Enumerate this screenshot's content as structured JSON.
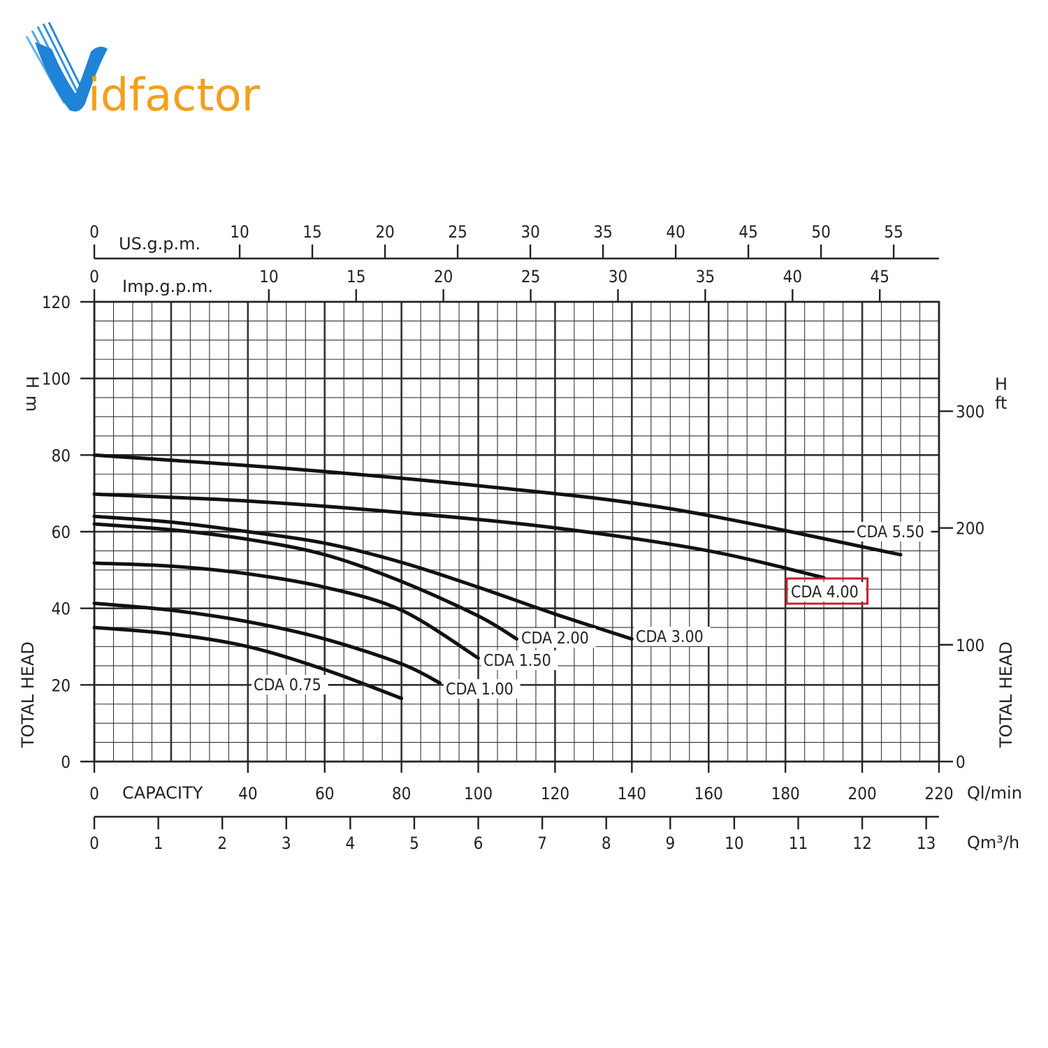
{
  "brand": {
    "logo_text_v": "V",
    "logo_text_rest": "idfactor",
    "colors": {
      "blue": "#2a8fe0",
      "orange": "#f2a01c"
    }
  },
  "chart_data": {
    "type": "line",
    "x_axis": {
      "label": "CAPACITY",
      "unit": "Ql/min",
      "range": [
        0,
        220
      ],
      "ticks": [
        0,
        40,
        60,
        80,
        100,
        120,
        140,
        160,
        180,
        200,
        220
      ],
      "minor_step": 5
    },
    "y_axis": {
      "label": "TOTAL HEAD",
      "unit": "H m",
      "unit_h": "H",
      "unit_m": "m",
      "range": [
        0,
        120
      ],
      "ticks": [
        0,
        20,
        40,
        60,
        80,
        100,
        120
      ],
      "minor_step": 5
    },
    "secondary_axes": {
      "us_gpm": {
        "label": "US.g.p.m.",
        "ticks": [
          0,
          10,
          15,
          20,
          25,
          30,
          35,
          40,
          45,
          50,
          55
        ]
      },
      "imp_gpm": {
        "label": "Imp.g.p.m.",
        "ticks": [
          0,
          10,
          15,
          20,
          25,
          30,
          35,
          40,
          45
        ]
      },
      "m3h": {
        "unit": "Qm³/h",
        "ticks": [
          0,
          1,
          2,
          3,
          4,
          5,
          6,
          7,
          8,
          9,
          10,
          11,
          12,
          13
        ]
      },
      "ft": {
        "label": "TOTAL HEAD",
        "unit_h": "H",
        "unit_ft": "ft",
        "ticks": [
          0,
          100,
          200,
          300
        ]
      }
    },
    "grid": true,
    "series": [
      {
        "name": "CDA 0.75",
        "points": [
          [
            0,
            35
          ],
          [
            20,
            33.3
          ],
          [
            40,
            30
          ],
          [
            60,
            24
          ],
          [
            80,
            16.5
          ]
        ]
      },
      {
        "name": "CDA 1.00",
        "points": [
          [
            0,
            41.3
          ],
          [
            20,
            39.5
          ],
          [
            40,
            36.5
          ],
          [
            60,
            32
          ],
          [
            80,
            25.5
          ],
          [
            90,
            20.5
          ]
        ]
      },
      {
        "name": "CDA 1.50",
        "points": [
          [
            0,
            51.8
          ],
          [
            20,
            51
          ],
          [
            40,
            49
          ],
          [
            60,
            45.5
          ],
          [
            80,
            39.5
          ],
          [
            100,
            27
          ]
        ]
      },
      {
        "name": "CDA 2.00",
        "points": [
          [
            0,
            62
          ],
          [
            20,
            60.5
          ],
          [
            40,
            58
          ],
          [
            60,
            54
          ],
          [
            80,
            47
          ],
          [
            100,
            38
          ],
          [
            110,
            32
          ]
        ]
      },
      {
        "name": "CDA 3.00",
        "points": [
          [
            0,
            64
          ],
          [
            20,
            62.5
          ],
          [
            40,
            60
          ],
          [
            60,
            57
          ],
          [
            80,
            52
          ],
          [
            100,
            45.5
          ],
          [
            120,
            38.5
          ],
          [
            140,
            32
          ]
        ]
      },
      {
        "name": "CDA 4.00",
        "highlight": true,
        "points": [
          [
            0,
            69.8
          ],
          [
            40,
            68
          ],
          [
            80,
            65
          ],
          [
            120,
            61
          ],
          [
            160,
            55
          ],
          [
            190,
            48
          ]
        ]
      },
      {
        "name": "CDA 5.50",
        "points": [
          [
            0,
            80
          ],
          [
            50,
            76.5
          ],
          [
            100,
            72
          ],
          [
            150,
            66
          ],
          [
            210,
            54
          ]
        ]
      }
    ]
  }
}
